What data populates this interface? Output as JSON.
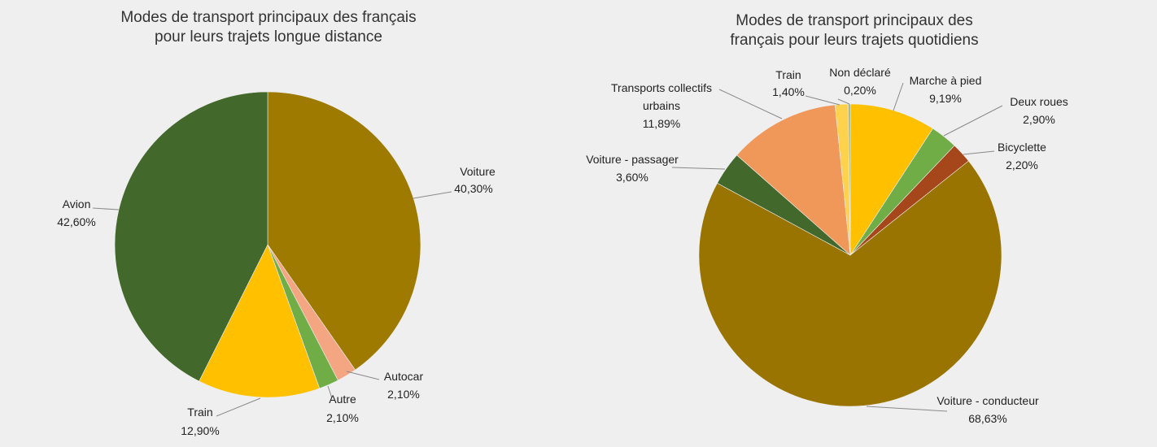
{
  "chart_data": [
    {
      "type": "pie",
      "title_lines": [
        "Modes de transport principaux des français",
        "pour leurs trajets longue distance"
      ],
      "slices": [
        {
          "name": "Voiture",
          "value": 40.3,
          "label": "40,30%",
          "color": "#9e7a00"
        },
        {
          "name": "Autocar",
          "value": 2.1,
          "label": "2,10%",
          "color": "#f4a582"
        },
        {
          "name": "Autre",
          "value": 2.1,
          "label": "2,10%",
          "color": "#70ad47"
        },
        {
          "name": "Train",
          "value": 12.9,
          "label": "12,90%",
          "color": "#ffc000"
        },
        {
          "name": "Avion",
          "value": 42.6,
          "label": "42,60%",
          "color": "#43682b"
        }
      ]
    },
    {
      "type": "pie",
      "title_lines": [
        "Modes de transport principaux des",
        "français pour leurs trajets quotidiens"
      ],
      "slices": [
        {
          "name": "Marche à pied",
          "value": 9.19,
          "label": "9,19%",
          "color": "#ffc000"
        },
        {
          "name": "Deux roues",
          "value": 2.9,
          "label": "2,90%",
          "color": "#70ad47"
        },
        {
          "name": "Bicyclette",
          "value": 2.2,
          "label": "2,20%",
          "color": "#a5461b"
        },
        {
          "name": "Voiture - conducteur",
          "value": 68.63,
          "label": "68,63%",
          "color": "#9a7400"
        },
        {
          "name": "Voiture - passager",
          "value": 3.6,
          "label": "3,60%",
          "color": "#43682b"
        },
        {
          "name": "Transports collectifs urbains",
          "value": 11.89,
          "label": "11,89%",
          "color": "#f0975a"
        },
        {
          "name": "Train",
          "value": 1.4,
          "label": "1,40%",
          "color": "#ffd24d"
        },
        {
          "name": "Non déclaré",
          "value": 0.2,
          "label": "0,20%",
          "color": "#7fb3a0"
        }
      ]
    }
  ]
}
